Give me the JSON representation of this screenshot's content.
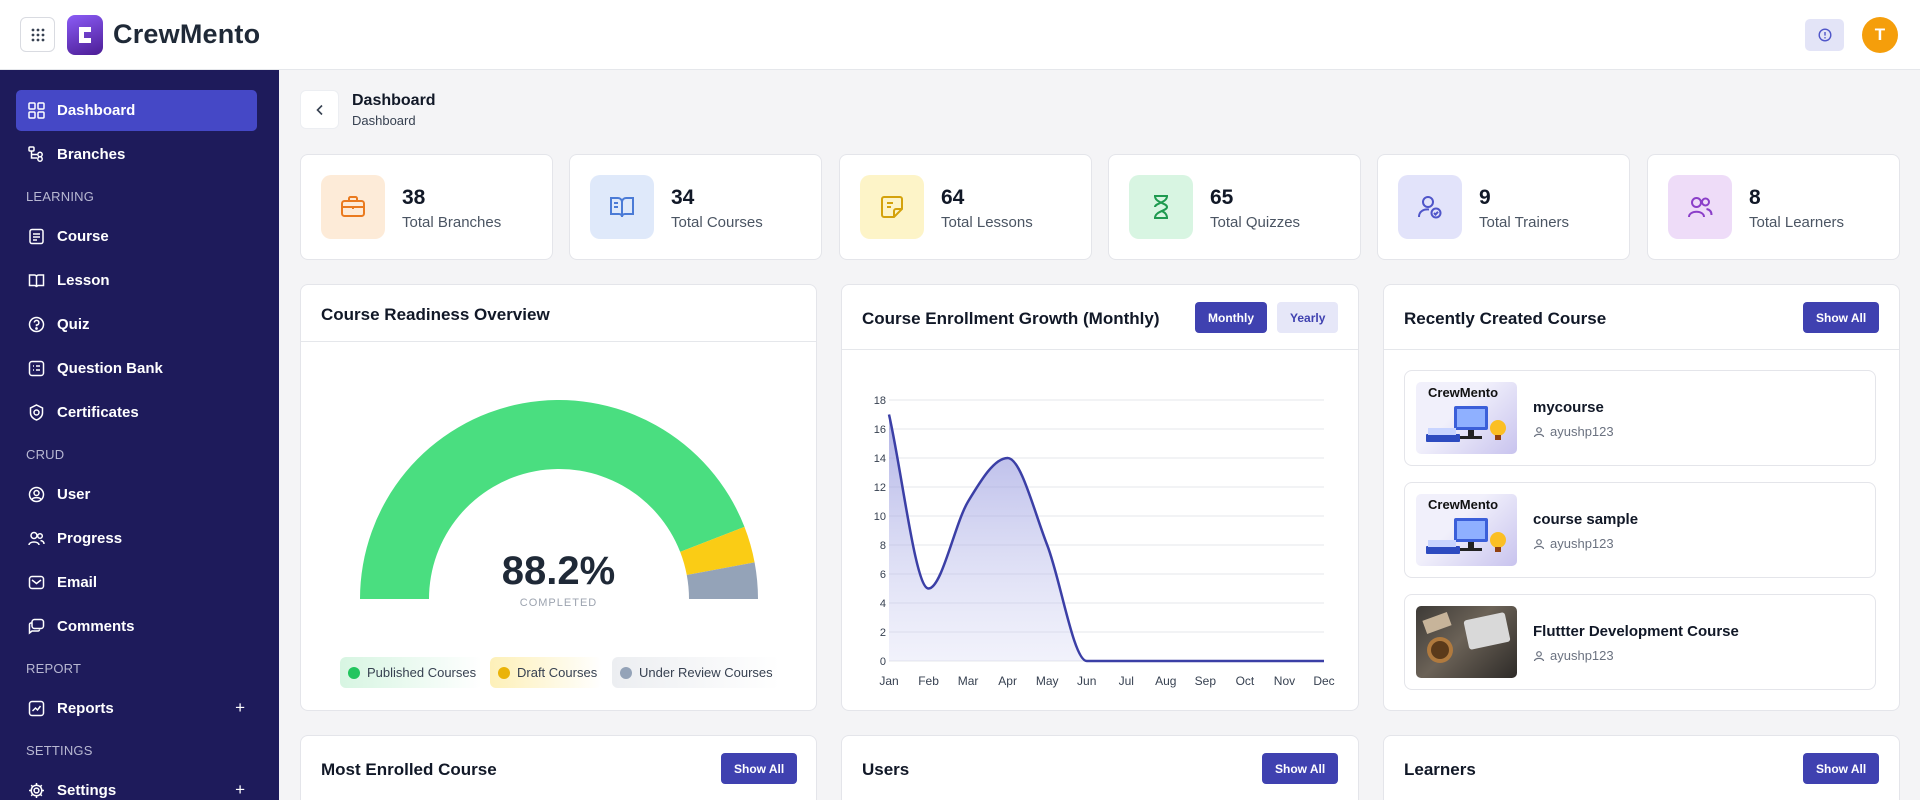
{
  "app": {
    "brand": "CrewMento",
    "avatar_initial": "T"
  },
  "sidebar": {
    "items": [
      {
        "label": "Dashboard"
      },
      {
        "label": "Branches"
      },
      {
        "label": "Course"
      },
      {
        "label": "Lesson"
      },
      {
        "label": "Quiz"
      },
      {
        "label": "Question Bank"
      },
      {
        "label": "Certificates"
      },
      {
        "label": "User"
      },
      {
        "label": "Progress"
      },
      {
        "label": "Email"
      },
      {
        "label": "Comments"
      },
      {
        "label": "Reports",
        "expand": "+"
      },
      {
        "label": "Settings",
        "expand": "+"
      }
    ],
    "sections": [
      "LEARNING",
      "CRUD",
      "REPORT",
      "SETTINGS"
    ]
  },
  "breadcrumb": {
    "title": "Dashboard",
    "sub": "Dashboard"
  },
  "stats": [
    {
      "value": "38",
      "label": "Total Branches",
      "icon": "briefcase-icon",
      "color": "#ea7a1f",
      "bg": "#fdebd8"
    },
    {
      "value": "34",
      "label": "Total Courses",
      "icon": "book-icon",
      "color": "#4b7bd6",
      "bg": "#dfe9fa"
    },
    {
      "value": "64",
      "label": "Total Lessons",
      "icon": "note-icon",
      "color": "#d4a20c",
      "bg": "#fdf4c8"
    },
    {
      "value": "65",
      "label": "Total Quizzes",
      "icon": "hourglass-icon",
      "color": "#1f9a50",
      "bg": "#d8f5e2"
    },
    {
      "value": "9",
      "label": "Total Trainers",
      "icon": "user-check-icon",
      "color": "#4f55c9",
      "bg": "#e2e3fa"
    },
    {
      "value": "8",
      "label": "Total Learners",
      "icon": "users-icon",
      "color": "#8b3fc9",
      "bg": "#eedcf8"
    }
  ],
  "readiness": {
    "title": "Course Readiness Overview",
    "value": "88.2%",
    "caption": "COMPLETED",
    "segments": [
      {
        "name": "Published Courses",
        "fraction": 0.882,
        "color": "#4ade80"
      },
      {
        "name": "Draft Courses",
        "fraction": 0.059,
        "color": "#facc15"
      },
      {
        "name": "Under Review Courses",
        "fraction": 0.059,
        "color": "#94a3b8"
      }
    ]
  },
  "enrollment": {
    "title": "Course Enrollment Growth (Monthly)",
    "toggle": [
      "Monthly",
      "Yearly"
    ]
  },
  "chart_data": {
    "type": "area",
    "title": "Course Enrollment Growth (Monthly)",
    "categories": [
      "Jan",
      "Feb",
      "Mar",
      "Apr",
      "May",
      "Jun",
      "Jul",
      "Aug",
      "Sep",
      "Oct",
      "Nov",
      "Dec"
    ],
    "series": [
      {
        "values": [
          17,
          5,
          11,
          14,
          8,
          0,
          0,
          0,
          0,
          0,
          0,
          0
        ],
        "color": "#3b3fa6"
      }
    ],
    "yticks": [
      "0",
      "2",
      "4",
      "6",
      "8",
      "10",
      "12",
      "14",
      "16",
      "18"
    ],
    "ylim": [
      0,
      18
    ],
    "grid": true
  },
  "recent": {
    "title": "Recently Created Course",
    "show_all": "Show All",
    "courses": [
      {
        "name": "mycourse",
        "author": "ayushp123",
        "thumb_text": "CrewMento"
      },
      {
        "name": "course sample",
        "author": "ayushp123",
        "thumb_text": "CrewMento"
      },
      {
        "name": "Fluttter Development Course",
        "author": "ayushp123",
        "thumb_text": ""
      }
    ]
  },
  "bottom": [
    {
      "title": "Most Enrolled Course",
      "button": "Show All"
    },
    {
      "title": "Users",
      "button": "Show All"
    },
    {
      "title": "Learners",
      "button": "Show All"
    }
  ]
}
